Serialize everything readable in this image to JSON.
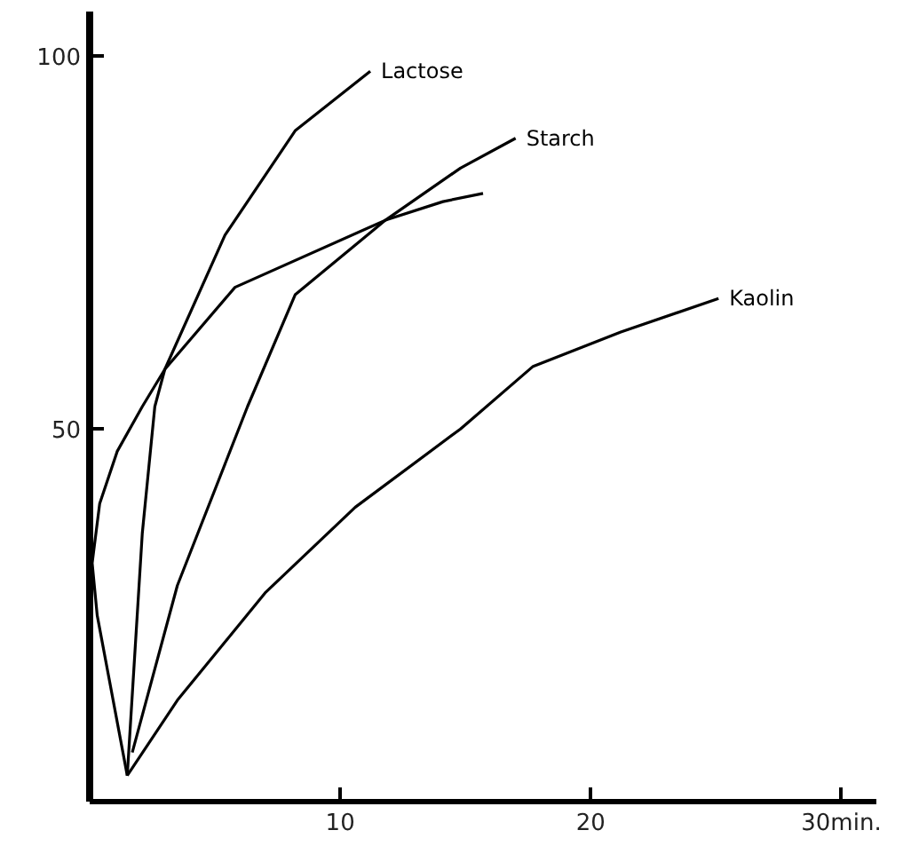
{
  "chart_data": {
    "type": "line",
    "xlim": [
      0,
      31.4
    ],
    "ylim": [
      0,
      106
    ],
    "xticks": [
      10,
      20,
      {
        "value": 30,
        "label": "30min."
      }
    ],
    "yticks": [
      50,
      100
    ],
    "grid": false,
    "marker": "none",
    "line_style": "solid",
    "series": [
      {
        "name": "Lactose",
        "color": "#000000",
        "x": [
          1.5,
          2.1,
          2.6,
          3.0,
          5.4,
          8.2,
          11.2
        ],
        "values": [
          3.5,
          36,
          53,
          58,
          76,
          90,
          98
        ]
      },
      {
        "name": "Starch",
        "color": "#000000",
        "x": [
          1.7,
          3.5,
          6.3,
          8.2,
          11.8,
          14.8,
          17.0
        ],
        "values": [
          6.6,
          29,
          53,
          68,
          78,
          85,
          89
        ]
      },
      {
        "color": "#000000",
        "x": [
          1.5,
          0.3,
          0.1,
          0.4,
          1.1,
          2.1,
          3.0,
          5.8,
          11.8,
          14.1,
          15.7
        ],
        "values": [
          3.5,
          25,
          32,
          40,
          47,
          53,
          58,
          69,
          78,
          80.5,
          81.6
        ]
      },
      {
        "name": "Kaolin",
        "color": "#000000",
        "x": [
          1.5,
          3.5,
          7.0,
          10.6,
          14.8,
          17.7,
          21.2,
          25.1
        ],
        "values": [
          3.5,
          13.6,
          28,
          39.5,
          50,
          58.4,
          63,
          67.5
        ]
      }
    ]
  }
}
